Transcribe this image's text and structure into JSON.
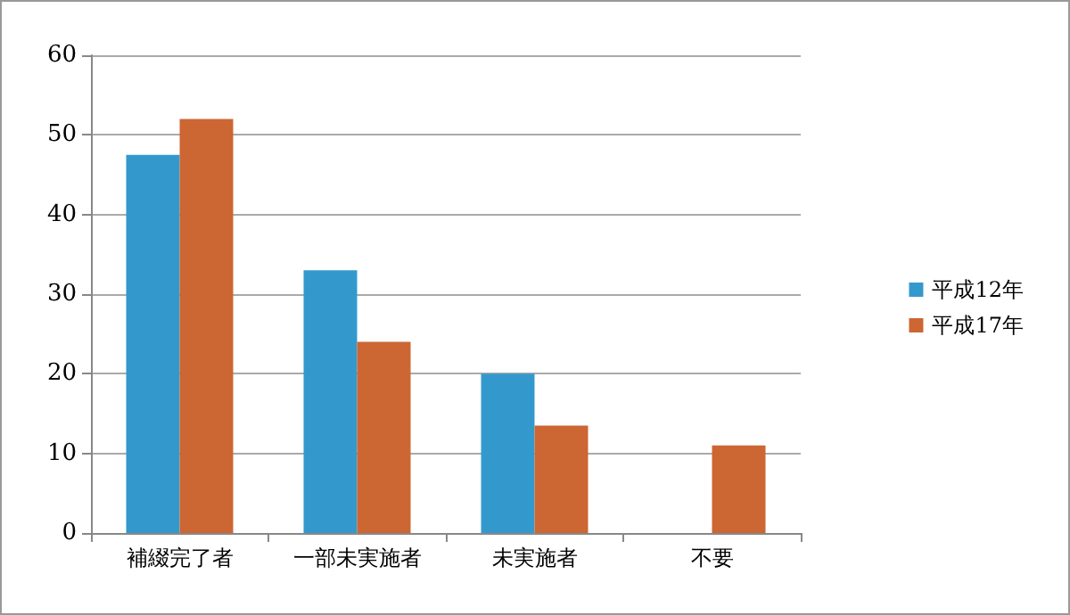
{
  "chart_data": {
    "type": "bar",
    "categories": [
      "補綴完了者",
      "一部未実施者",
      "未実施者",
      "不要"
    ],
    "series": [
      {
        "name": "平成12年",
        "color": "#3399cc",
        "values": [
          47.5,
          33,
          20,
          0
        ]
      },
      {
        "name": "平成17年",
        "color": "#cc6633",
        "values": [
          52,
          24,
          13.5,
          11
        ]
      }
    ],
    "ylim": [
      0,
      60
    ],
    "yticks": [
      0,
      10,
      20,
      30,
      40,
      50,
      60
    ],
    "grid": "y",
    "legend": "right"
  }
}
